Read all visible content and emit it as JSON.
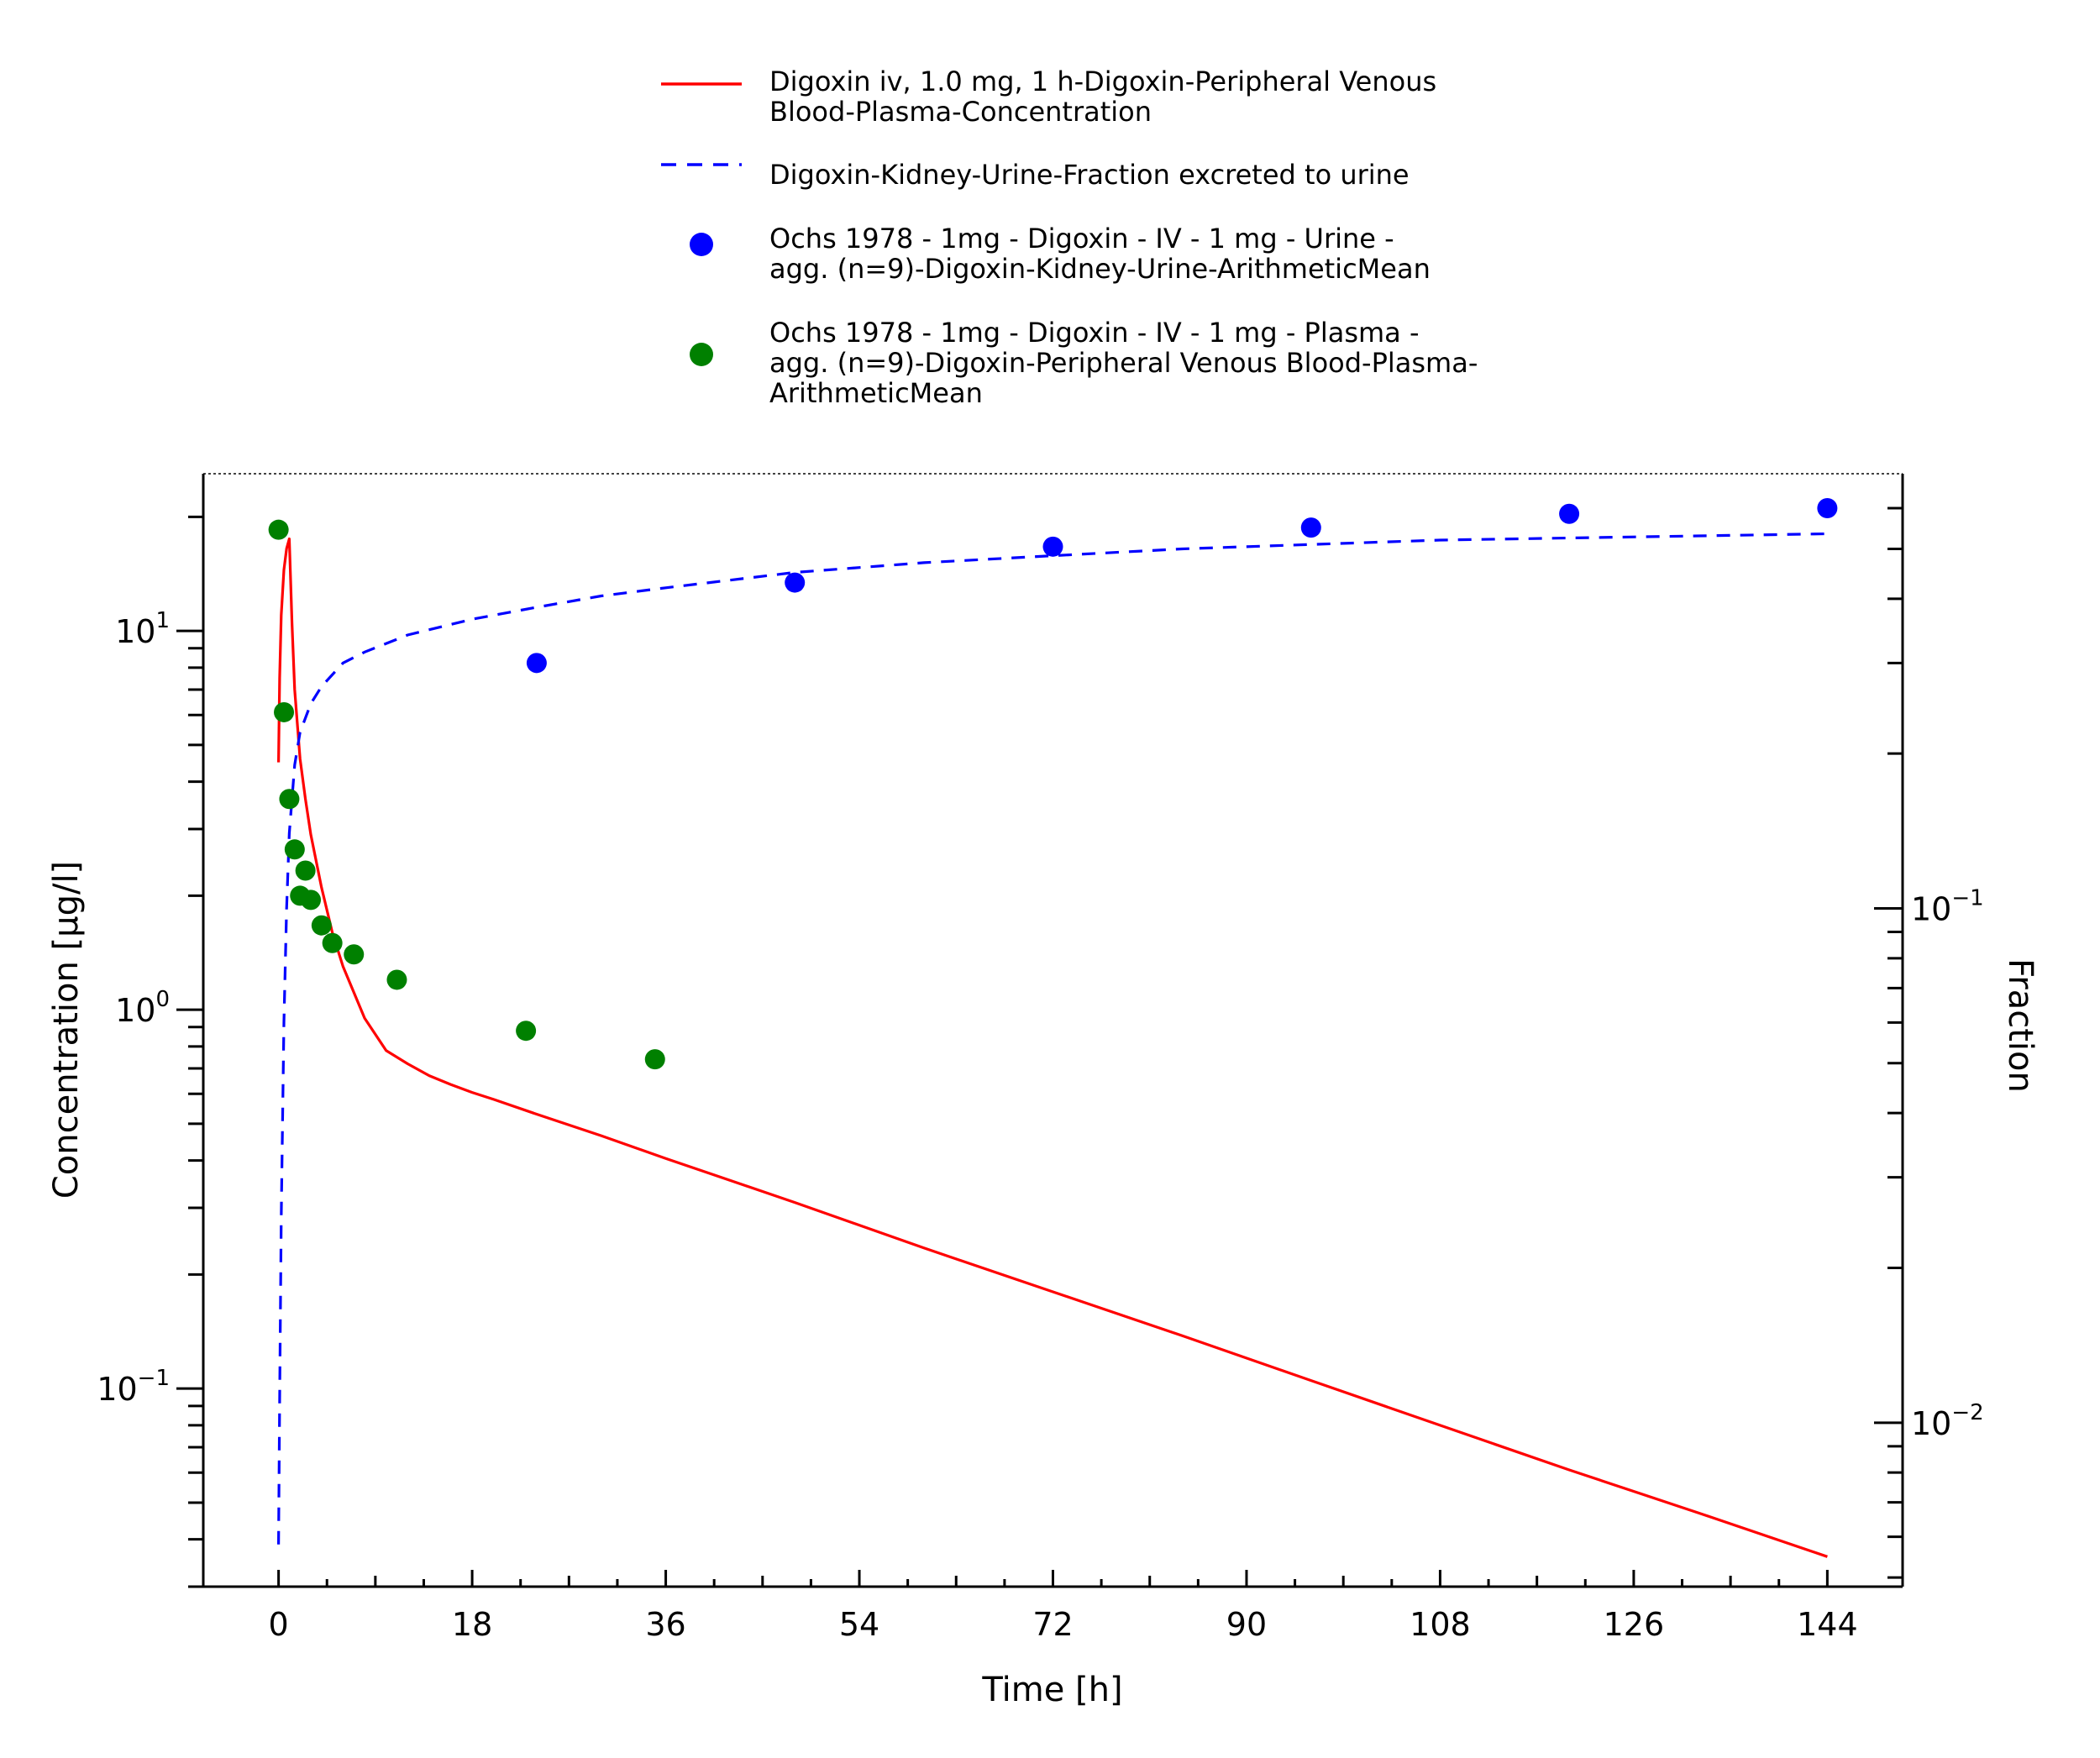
{
  "chart_data": {
    "type": "line",
    "xlabel": "Time [h]",
    "ylabel": "Concentration [µg/l]",
    "y2label": "Fraction",
    "xlim": [
      -7,
      151
    ],
    "ylim": [
      0.03,
      26
    ],
    "y2lim": [
      0.0048,
      0.7
    ],
    "yscale": "log",
    "y2scale": "log",
    "grid": false,
    "legend_position": "top-center",
    "x_ticks": [
      "0",
      "18",
      "36",
      "54",
      "72",
      "90",
      "108",
      "126",
      "144"
    ],
    "y_ticks": [
      {
        "base": "10",
        "exp": "1"
      },
      {
        "base": "10",
        "exp": "0"
      },
      {
        "base": "10",
        "exp": "−1"
      }
    ],
    "y2_ticks": [
      {
        "base": "10",
        "exp": "−1"
      },
      {
        "base": "10",
        "exp": "−2"
      }
    ],
    "series": [
      {
        "name": "Digoxin iv, 1.0 mg, 1 h-Digoxin-Peripheral Venous Blood-Plasma-Concentration",
        "legend_lines": [
          "Digoxin iv, 1.0 mg, 1 h-Digoxin-Peripheral Venous",
          "Blood-Plasma-Concentration"
        ],
        "kind": "line",
        "style": "solid",
        "color": "#ff0000",
        "axis": "left",
        "x": [
          0,
          0.1,
          0.25,
          0.5,
          0.75,
          1.0,
          1.25,
          1.5,
          2,
          2.5,
          3,
          4,
          5,
          6,
          8,
          10,
          12,
          14,
          16,
          18,
          20,
          24,
          30,
          36,
          48,
          60,
          72,
          84,
          96,
          108,
          120,
          132,
          144
        ],
        "y": [
          4.5,
          7.5,
          11.0,
          14.5,
          16.5,
          17.5,
          10.5,
          7.0,
          4.6,
          3.6,
          2.9,
          2.1,
          1.6,
          1.3,
          0.95,
          0.78,
          0.72,
          0.67,
          0.635,
          0.605,
          0.58,
          0.53,
          0.465,
          0.405,
          0.31,
          0.235,
          0.18,
          0.138,
          0.105,
          0.08,
          0.061,
          0.047,
          0.036
        ]
      },
      {
        "name": "Digoxin-Kidney-Urine-Fraction excreted to urine",
        "legend_lines": [
          "Digoxin-Kidney-Urine-Fraction excreted to urine"
        ],
        "kind": "line",
        "style": "dashed",
        "color": "#0000ff",
        "axis": "right",
        "x": [
          0,
          0.1,
          0.25,
          0.5,
          0.75,
          1.0,
          1.5,
          2,
          3,
          4,
          6,
          8,
          12,
          18,
          24,
          30,
          36,
          48,
          60,
          72,
          84,
          96,
          108,
          120,
          132,
          144
        ],
        "y": [
          0.0058,
          0.011,
          0.025,
          0.06,
          0.1,
          0.14,
          0.19,
          0.22,
          0.25,
          0.27,
          0.3,
          0.315,
          0.34,
          0.365,
          0.385,
          0.405,
          0.42,
          0.45,
          0.47,
          0.485,
          0.5,
          0.51,
          0.52,
          0.525,
          0.53,
          0.535
        ]
      },
      {
        "name": "Ochs 1978 - 1mg - Digoxin - IV - 1 mg - Urine - agg. (n=9)-Digoxin-Kidney-Urine-ArithmeticMean",
        "legend_lines": [
          "Ochs 1978 - 1mg - Digoxin - IV - 1 mg - Urine -",
          "agg. (n=9)-Digoxin-Kidney-Urine-ArithmeticMean"
        ],
        "kind": "scatter",
        "color": "#0000ff",
        "axis": "right",
        "x": [
          24,
          48,
          72,
          96,
          120,
          144
        ],
        "y": [
          0.3,
          0.43,
          0.505,
          0.55,
          0.585,
          0.6
        ]
      },
      {
        "name": "Ochs 1978 - 1mg - Digoxin - IV - 1 mg - Plasma - agg. (n=9)-Digoxin-Peripheral Venous Blood-Plasma-ArithmeticMean",
        "legend_lines": [
          "Ochs 1978 - 1mg - Digoxin - IV - 1 mg - Plasma -",
          "agg. (n=9)-Digoxin-Peripheral Venous Blood-Plasma-",
          "ArithmeticMean"
        ],
        "kind": "scatter",
        "color": "#008000",
        "axis": "left",
        "x": [
          0,
          0.5,
          1.0,
          1.5,
          2.0,
          2.5,
          3.0,
          4.0,
          5.0,
          7.0,
          11.0,
          23.0,
          35.0
        ],
        "y": [
          18.5,
          6.1,
          3.6,
          2.65,
          2.0,
          2.33,
          1.95,
          1.67,
          1.5,
          1.4,
          1.2,
          0.88,
          0.74
        ]
      }
    ]
  }
}
